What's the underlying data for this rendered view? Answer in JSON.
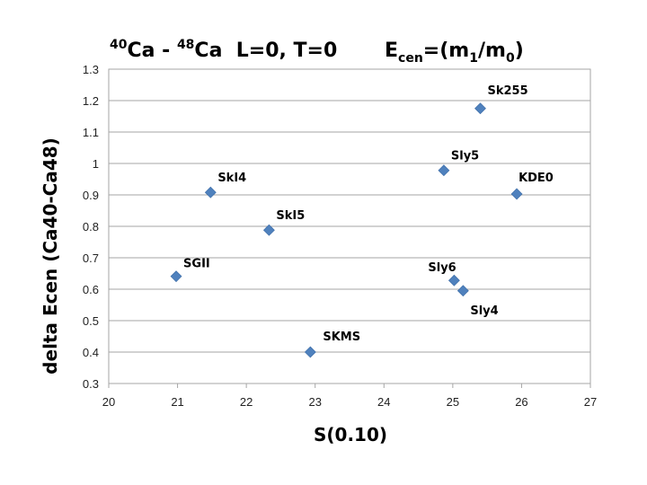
{
  "chart_data": {
    "type": "scatter",
    "title_left": {
      "iso1_mass": "40",
      "iso1_sym": "Ca",
      "sep": " - ",
      "iso2_mass": "48",
      "iso2_sym": "Ca",
      "rest": "  L=0, T=0"
    },
    "title_right": {
      "e": "E",
      "e_sub": "cen",
      "mid": "=(m",
      "m1_sub": "1",
      "slash": "/m",
      "m0_sub": "0",
      "close": ")"
    },
    "xlabel": "S(0.10)",
    "ylabel": "delta Ecen (Ca40-Ca48)",
    "xlim": [
      20,
      27
    ],
    "ylim": [
      0.3,
      1.3
    ],
    "x_ticks": [
      "20",
      "21",
      "22",
      "23",
      "24",
      "25",
      "26",
      "27"
    ],
    "y_ticks": [
      "0.3",
      "0.4",
      "0.5",
      "0.6",
      "0.7",
      "0.8",
      "0.9",
      "1",
      "1.1",
      "1.2",
      "1.3"
    ],
    "grid": "horizontal",
    "legend": "none",
    "marker_color": "#4F81BD",
    "points": [
      {
        "label": "Sk255",
        "x": 25.4,
        "y": 1.175
      },
      {
        "label": "Sly5",
        "x": 24.87,
        "y": 0.978
      },
      {
        "label": "KDE0",
        "x": 25.93,
        "y": 0.903
      },
      {
        "label": "SkI4",
        "x": 21.48,
        "y": 0.908
      },
      {
        "label": "SkI5",
        "x": 22.33,
        "y": 0.788
      },
      {
        "label": "SGII",
        "x": 20.98,
        "y": 0.641
      },
      {
        "label": "Sly6",
        "x": 25.02,
        "y": 0.628
      },
      {
        "label": "Sly4",
        "x": 25.15,
        "y": 0.595
      },
      {
        "label": "SKMS",
        "x": 22.93,
        "y": 0.4
      }
    ]
  }
}
